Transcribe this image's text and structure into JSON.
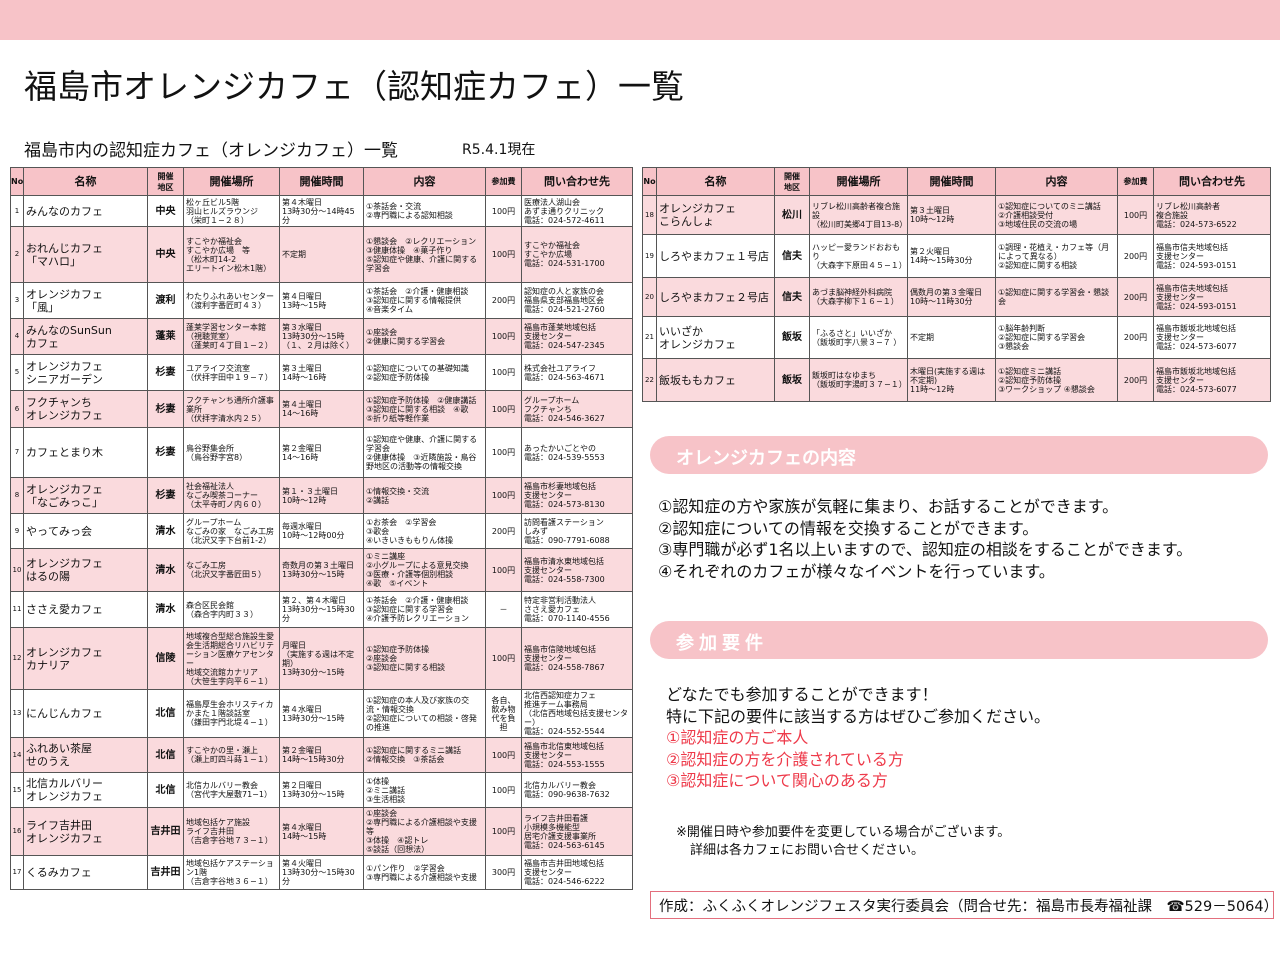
{
  "title": "福島市オレンジカフェ（認知症カフェ）一覧",
  "subtitle": "福島市内の認知症カフェ（オレンジカフェ）一覧",
  "as_of": "R5.4.1現在",
  "headers": {
    "no": "No",
    "name": "名称",
    "area": "開催\n地区",
    "place": "開催場所",
    "time": "開催時間",
    "content": "内容",
    "fee": "参加費",
    "contact": "問い合わせ先"
  },
  "cafes_left": [
    {
      "no": "1",
      "name": "みんなのカフェ",
      "area": "中央",
      "place": "松ヶ丘ビル5階\n羽山ヒルズラウンジ\n（栄町１−２８）",
      "time": "第４木曜日\n13時30分～14時45分",
      "content": "①茶話会・交流\n②専門職による認知相談",
      "fee": "100円",
      "contact": "医療法人湖山会\nあずま通りクリニック\n電話：024-572-4611"
    },
    {
      "no": "2",
      "name": "おれんじカフェ\n「マハロ」",
      "area": "中央",
      "place": "すこやか福祉会\nすこやか広場　等\n（松木町14-2\nエリートイン松木1階）",
      "time": "不定期",
      "content": "①懇談会　②レクリエーション\n③健康体操　④菓子作り\n⑤認知症や健康、介護に関する学習会",
      "fee": "100円",
      "contact": "すこやか福祉会\nすこやか広場\n電話：024-531-1700"
    },
    {
      "no": "3",
      "name": "オレンジカフェ\n「風」",
      "area": "渡利",
      "place": "わたりふれあいセンター\n（渡利字番匠町４３）",
      "time": "第４日曜日\n13時～15時",
      "content": "①茶話会　②介護・健康相談\n③認知症に関する情報提供\n④音楽タイム",
      "fee": "200円",
      "contact": "認知症の人と家族の会\n福島県支部福島地区会\n電話：024-521-2760"
    },
    {
      "no": "4",
      "name": "みんなのSunSun\nカフェ",
      "area": "蓬莱",
      "place": "蓬莱学習センター本館\n（視聴覚室）\n（蓬莱町４丁目１−２）",
      "time": "第３水曜日\n13時30分～15時\n（１、２月は除く）",
      "content": "①座談会\n②健康に関する学習会",
      "fee": "100円",
      "contact": "福島市蓬莱地域包括\n支援センター\n電話：024-547-2345"
    },
    {
      "no": "5",
      "name": "オレンジカフェ\nシニアガーデン",
      "area": "杉妻",
      "place": "ユアライフ交流室\n（伏拝字田中１９−７）",
      "time": "第３土曜日\n14時～16時",
      "content": "①認知症についての基礎知識\n②認知症予防体操",
      "fee": "100円",
      "contact": "株式会社ユアライフ\n電話：024-563-4671"
    },
    {
      "no": "6",
      "name": "フクチャンち\nオレンジカフェ",
      "area": "杉妻",
      "place": "フクチャンち通所介護事業所\n（伏拝字清水内２５）",
      "time": "第４土曜日\n14～16時",
      "content": "①認知症予防体操　②健康講話\n③認知症に関する相談　④歌\n⑤折り紙等軽作業",
      "fee": "100円",
      "contact": "グループホーム\nフクチャンち\n電話：024-546-3627"
    },
    {
      "no": "7",
      "name": "カフェとまり木",
      "area": "杉妻",
      "place": "鳥谷野集会所\n（鳥谷野字宮8）",
      "time": "第２金曜日\n14～16時",
      "content": "①認知症や健康、介護に関する学習会\n②健康体操　③近隣施設・鳥谷野地区の活動等の情報交換",
      "fee": "100円",
      "contact": "あったかいごとやの\n電話：024-539-5553"
    },
    {
      "no": "8",
      "name": "オレンジカフェ\n「なごみっこ」",
      "area": "杉妻",
      "place": "社会福祉法人\nなごみ喫茶コーナー\n（太平寺町ノ内６０）",
      "time": "第１・３土曜日\n10時～12時",
      "content": "①情報交換・交流\n②講話",
      "fee": "100円",
      "contact": "福島市杉妻地域包括\n支援センター\n電話：024-573-8130"
    },
    {
      "no": "9",
      "name": "やってみっ会",
      "area": "清水",
      "place": "グループホーム\nなごみの家　なごみ工房\n（北沢又字下台前1-2）",
      "time": "毎週水曜日\n10時～12時00分",
      "content": "①お茶会　②学習会\n③歌会\n④いきいきももりん体操",
      "fee": "200円",
      "contact": "訪問看護ステーション\nしみず\n電話：090-7791-6088"
    },
    {
      "no": "10",
      "name": "オレンジカフェ\nはるの陽",
      "area": "清水",
      "place": "なごみ工房\n（北沢又字番匠田５）",
      "time": "奇数月の第３土曜日\n13時30分～15時",
      "content": "①ミニ講座\n②小グループによる意見交換\n③医療・介護等個別相談\n④歌　⑤イベント",
      "fee": "100円",
      "contact": "福島市清水東地域包括\n支援センター\n電話：024-558-7300"
    },
    {
      "no": "11",
      "name": "ささえ愛カフェ",
      "area": "清水",
      "place": "森合区民会館\n（森合字内町３３）",
      "time": "第２、第４木曜日\n13時30分～15時30分",
      "content": "①茶話会　②介護・健康相談\n③認知症に関する学習会\n④介護予防レクリエーション",
      "fee": "－",
      "contact": "特定非営利活動法人\nささえ愛カフェ\n電話：070-1140-4556"
    },
    {
      "no": "12",
      "name": "オレンジカフェ\nカナリア",
      "area": "信陵",
      "place": "地域複合型総合施設生愛会生活期総合リハビリテーション医療ケアセンター\n地域交流館カナリア\n（大笹生字向平６−１）",
      "time": "月曜日\n（実施する週は不定期）\n13時30分～15時",
      "content": "①認知症予防体操\n②座談会\n③認知症に関する相談",
      "fee": "100円",
      "contact": "福島市信陵地域包括\n支援センター\n電話：024-558-7867"
    },
    {
      "no": "13",
      "name": "にんじんカフェ",
      "area": "北信",
      "place": "福島厚生会ホリスティカかまた１階談話室\n（鎌田字門北堤４−１）",
      "time": "第４水曜日\n13時30分～15時",
      "content": "①認知症の本人及び家族の交流・情報交換\n②認知症についての相談・啓発の推進",
      "fee": "各自、飲み物代を負担",
      "contact": "北信西認知症カフェ\n推進チーム事務局\n（北信西地域包括支援センター）\n電話：024-552-5544"
    },
    {
      "no": "14",
      "name": "ふれあい茶屋\nせのうえ",
      "area": "北信",
      "place": "すこやかの里・瀬上\n（瀬上町四斗蒔１−１）",
      "time": "第２金曜日\n14時～15時30分",
      "content": "①認知症に関するミニ講話\n②情報交換　③茶話会",
      "fee": "100円",
      "contact": "福島市北信東地域包括\n支援センター\n電話：024-553-1555"
    },
    {
      "no": "15",
      "name": "北信カルバリー\nオレンジカフェ",
      "area": "北信",
      "place": "北信カルバリー教会\n（宮代字大屋敷71−1）",
      "time": "第２日曜日\n13時30分～15時",
      "content": "①体操\n②ミニ講話\n③生活相談",
      "fee": "100円",
      "contact": "北信カルバリー教会\n電話：090-9638-7632"
    },
    {
      "no": "16",
      "name": "ライフ吉井田\nオレンジカフェ",
      "area": "吉井田",
      "place": "地域包括ケア施設\nライフ吉井田\n（吉倉字谷地７３−１）",
      "time": "第４水曜日\n14時～15時",
      "content": "①座談会\n②専門職による介護相談や支援等\n③体操　④認トレ\n⑤談話（回想法）",
      "fee": "100円",
      "contact": "ライフ吉井田看護\n小規模多機能型\n居宅介護支援事業所\n電話：024-563-6145"
    },
    {
      "no": "17",
      "name": "くるみカフェ",
      "area": "吉井田",
      "place": "地域包括ケアステーション1階\n（吉倉字谷地３６−１）",
      "time": "第４火曜日\n13時30分～15時30分",
      "content": "①パン作り　②学習会\n③専門職による介護相談や支援",
      "fee": "300円",
      "contact": "福島市吉井田地域包括\n支援センター\n電話：024-546-6222"
    }
  ],
  "cafes_right": [
    {
      "no": "18",
      "name": "オレンジカフェ\nこらんしょ",
      "area": "松川",
      "place": "リブレ松川高齢者複合施設\n（松川町美郷4丁目13-8）",
      "time": "第３土曜日\n10時～12時",
      "content": "①認知症についてのミニ講話\n②介護相談受付\n③地域住民の交流の場",
      "fee": "100円",
      "contact": "リブレ松川高齢者\n複合施設\n電話：024-573-6522"
    },
    {
      "no": "19",
      "name": "しろやまカフェ１号店",
      "area": "信夫",
      "place": "ハッピー愛ランドおおもり\n（大森字下原田４５−１）",
      "time": "第２火曜日\n14時～15時30分",
      "content": "①調理・花植え・カフェ等（月によって異なる）\n②認知症に関する相談",
      "fee": "200円",
      "contact": "福島市信夫地域包括\n支援センター\n電話：024-593-0151"
    },
    {
      "no": "20",
      "name": "しろやまカフェ２号店",
      "area": "信夫",
      "place": "あづま脳神経外科病院\n（大森字柳下１６−１）",
      "time": "偶数月の第３金曜日\n10時～11時30分",
      "content": "①認知症に関する学習会・懇談会",
      "fee": "200円",
      "contact": "福島市信夫地域包括\n支援センター\n電話：024-593-0151"
    },
    {
      "no": "21",
      "name": "いいざか\nオレンジカフェ",
      "area": "飯坂",
      "place": "「ふるさと」いいざか\n（飯坂町字八景３−７ ）",
      "time": "不定期",
      "content": "①脳年齢判断\n②認知症に関する学習会\n③懇談会",
      "fee": "200円",
      "contact": "福島市飯坂北地域包括\n支援センター\n電話：024-573-6077"
    },
    {
      "no": "22",
      "name": "飯坂ももカフェ",
      "area": "飯坂",
      "place": "飯坂町はなゆまち\n（飯坂町字湯町３７−１）",
      "time": "木曜日(実施する週は不定期)\n11時～12時",
      "content": "①認知症ミニ講話\n②認知症予防体操\n③ワークショップ ④懇談会",
      "fee": "200円",
      "contact": "福島市飯坂北地域包括\n支援センター\n電話：024-573-6077"
    }
  ],
  "section_content": {
    "heading": "オレンジカフェの内容",
    "lines": [
      "①認知症の方や家族が気軽に集まり、お話することができます。",
      "②認知症についての情報を交換することができます。",
      "③専門職が必ず1名以上いますので、認知症の相談をすることができます。",
      "④それぞれのカフェが様々なイベントを行っています。"
    ]
  },
  "section_participation": {
    "heading": "参加要件",
    "intro": [
      "どなたでも参加することができます！",
      "特に下記の要件に該当する方はぜひご参加ください。"
    ],
    "conditions": [
      "①認知症の方ご本人",
      "②認知症の方を介護されている方",
      "③認知症について関心のある方"
    ]
  },
  "notes": [
    "※開催日時や参加要件を変更している場合がございます。",
    "詳細は各カフェにお問い合せください。"
  ],
  "footer": "作成：ふくふくオレンジフェスタ実行委員会（問合せ先：福島市長寿福祉課　☎529－5064）",
  "colors": {
    "band": "#f7c3c8",
    "row_pink": "#fadadd",
    "accent_red": "#ee3a4a",
    "footer_border": "#e36f7d"
  }
}
